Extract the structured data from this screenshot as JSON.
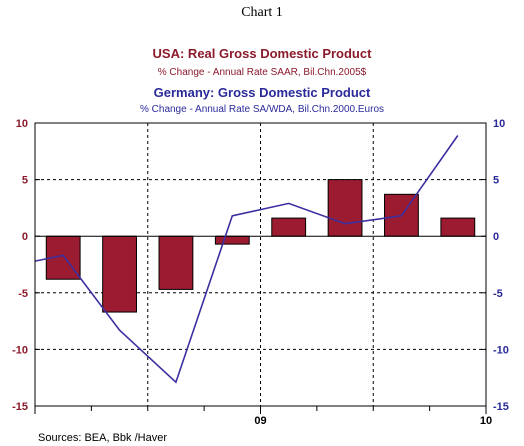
{
  "header": {
    "chart_number": "Chart 1",
    "title1": "USA:  Real Gross Domestic Product",
    "subtitle1": "% Change - Annual Rate      SAAR, Bil.Chn.2005$",
    "title2": "Germany: Gross Domestic Product",
    "subtitle2": "% Change - Annual Rate      SA/WDA, Bil.Chn.2000.Euros"
  },
  "footer": {
    "sources": "Sources:  BEA, Bbk /Haver"
  },
  "colors": {
    "usa_bar": "#9b1b30",
    "usa_title": "#8b1a2b",
    "germany_line": "#3b2fa0",
    "germany_title": "#2a2a9a",
    "axis": "#000000"
  },
  "chart_data": {
    "type": "bar",
    "x_tick_labels": [
      "",
      "",
      "09",
      "",
      "",
      "10"
    ],
    "ylim": [
      -15,
      10
    ],
    "y_ticks": [
      10,
      5,
      0,
      -5,
      -10,
      -15
    ],
    "y_tick_labels_left": [
      "10",
      "5",
      "0",
      "-5",
      "-10",
      "-15"
    ],
    "y_tick_labels_right": [
      "10",
      "5",
      "0",
      "-5",
      "-10",
      "-15"
    ],
    "grid": true,
    "series": [
      {
        "name": "USA:  Real Gross Domestic Product",
        "type": "bar",
        "axis": "left",
        "values": [
          -3.8,
          -6.7,
          -4.7,
          -0.7,
          1.6,
          5.0,
          3.7,
          1.6
        ]
      },
      {
        "name": "Germany: Gross Domestic Product",
        "type": "line",
        "axis": "right",
        "values": [
          -2.2,
          -1.7,
          -8.3,
          -12.9,
          1.8,
          2.9,
          1.1,
          1.8,
          8.9
        ]
      }
    ]
  }
}
